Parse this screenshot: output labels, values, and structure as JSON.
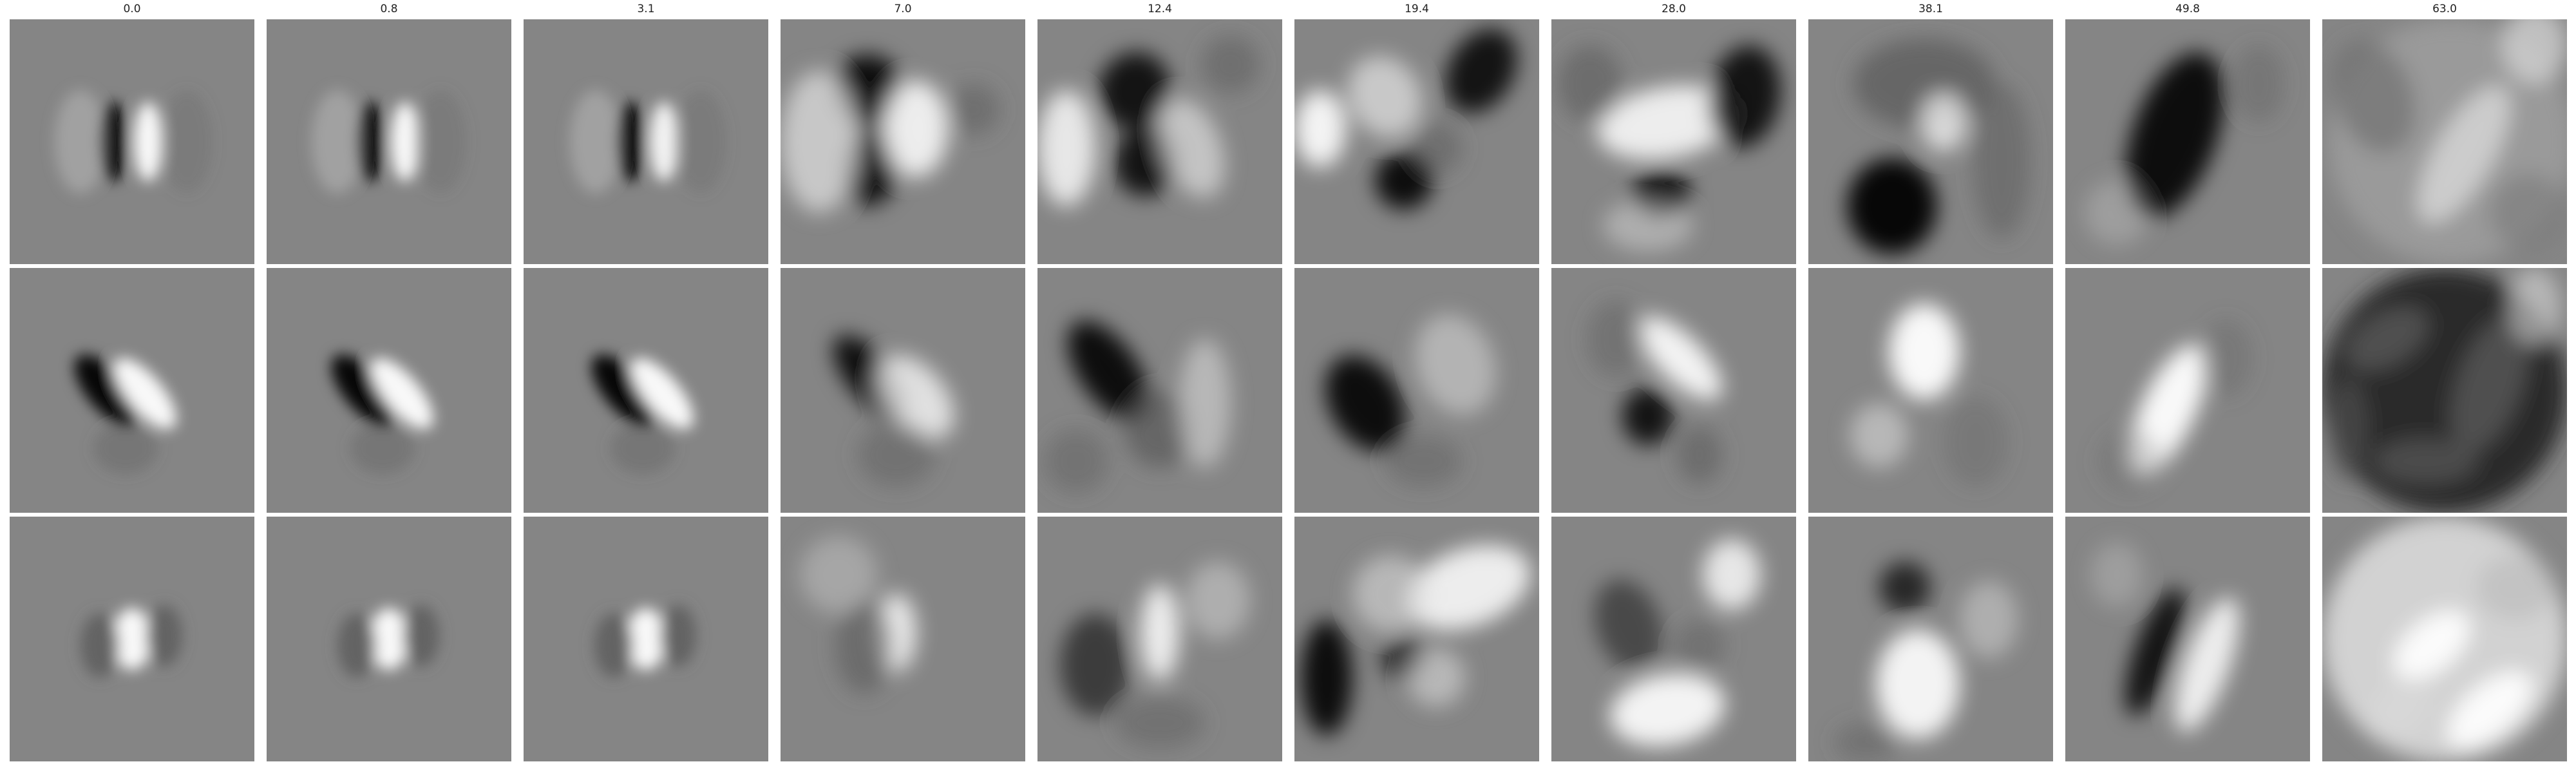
{
  "column_titles": [
    "0.0",
    "0.8",
    "3.1",
    "7.0",
    "12.4",
    "19.4",
    "28.0",
    "38.1",
    "49.8",
    "63.0"
  ],
  "colors": {
    "background": "#ffffff",
    "panel_mid_gray": "#858585"
  },
  "image": {
    "kind": "grayscale filter visualizations",
    "rows": 3,
    "columns": 10,
    "content_by_row": [
      "dark and bright vertical bar pair near center, becoming blotchy at larger values",
      "dark/bright diagonal pair near center, becoming blob-like then noisy dark at largest value",
      "bright center blob with dark flanks, becoming blotchy then very light at largest value"
    ]
  }
}
